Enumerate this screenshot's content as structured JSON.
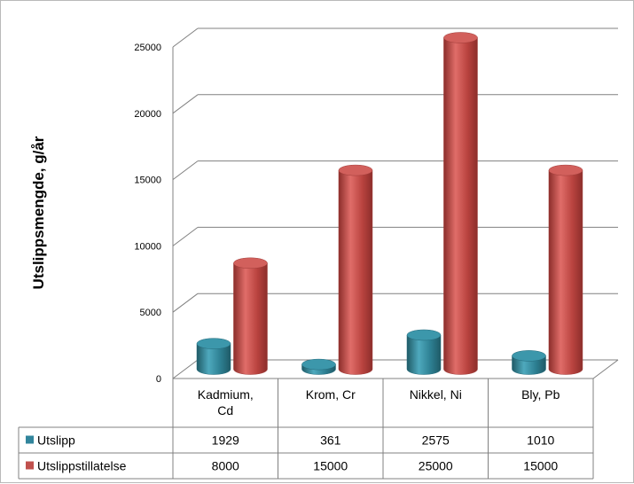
{
  "chart_data": {
    "type": "bar",
    "title": "",
    "xlabel": "",
    "ylabel": "Utslippsmengde, g/år",
    "categories": [
      "Kadmium, Cd",
      "Krom, Cr",
      "Nikkel, Ni",
      "Bly, Pb"
    ],
    "category_lines": [
      [
        "Kadmium,",
        "Cd"
      ],
      [
        "Krom, Cr"
      ],
      [
        "Nikkel, Ni"
      ],
      [
        "Bly, Pb"
      ]
    ],
    "series": [
      {
        "name": "Utslipp",
        "values": [
          1929,
          361,
          2575,
          1010
        ],
        "color": "#31859c"
      },
      {
        "name": "Utslippstillatelse",
        "values": [
          8000,
          15000,
          25000,
          15000
        ],
        "color": "#c0504d"
      }
    ],
    "ylim": [
      0,
      25000
    ],
    "yticks": [
      0,
      5000,
      10000,
      15000,
      20000,
      25000
    ],
    "grid": true,
    "three_d": true,
    "legend": "data-table"
  }
}
